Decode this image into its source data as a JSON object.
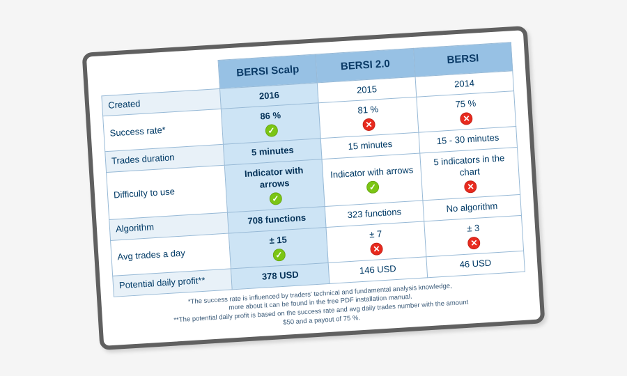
{
  "columns": [
    "BERSI Scalp",
    "BERSI 2.0",
    "BERSI"
  ],
  "rows": [
    {
      "label": "Created",
      "cells": [
        {
          "text": "2016"
        },
        {
          "text": "2015"
        },
        {
          "text": "2014"
        }
      ]
    },
    {
      "label": "Success rate*",
      "cells": [
        {
          "text": "86 %",
          "icon": "ok"
        },
        {
          "text": "81 %",
          "icon": "no"
        },
        {
          "text": "75 %",
          "icon": "no"
        }
      ]
    },
    {
      "label": "Trades duration",
      "cells": [
        {
          "text": "5 minutes"
        },
        {
          "text": "15 minutes"
        },
        {
          "text": "15 - 30 minutes"
        }
      ]
    },
    {
      "label": "Difficulty to use",
      "cells": [
        {
          "text": "Indicator with arrows",
          "icon": "ok"
        },
        {
          "text": "Indicator with arrows",
          "icon": "ok"
        },
        {
          "text": "5 indicators in the chart",
          "icon": "no"
        }
      ]
    },
    {
      "label": "Algorithm",
      "cells": [
        {
          "text": "708 functions"
        },
        {
          "text": "323 functions"
        },
        {
          "text": "No algorithm"
        }
      ]
    },
    {
      "label": "Avg trades a day",
      "cells": [
        {
          "text": "± 15",
          "icon": "ok"
        },
        {
          "text": "± 7",
          "icon": "no"
        },
        {
          "text": "± 3",
          "icon": "no"
        }
      ]
    },
    {
      "label": "Potential daily profit**",
      "cells": [
        {
          "text": "378 USD"
        },
        {
          "text": "146 USD"
        },
        {
          "text": "46 USD"
        }
      ]
    }
  ],
  "footnotes": [
    "*The success rate is influenced by traders' technical and fundamental analysis knowledge,",
    "more about it can be found in the free PDF installation manual.",
    "**The potential daily profit is based on the success rate and avg daily trades number with the amount",
    "$50 and a payout of 75 %."
  ],
  "style": {
    "frame_border_color": "#606060",
    "header_bg": "#97c1e4",
    "highlight_bg": "#cde4f5",
    "label_bg": "#e8f1f8",
    "cell_border": "#97b9d6",
    "text_color": "#003a66",
    "ok_color": "#7bc514",
    "no_color": "#e82a1e",
    "rotation_deg": -3.5
  }
}
